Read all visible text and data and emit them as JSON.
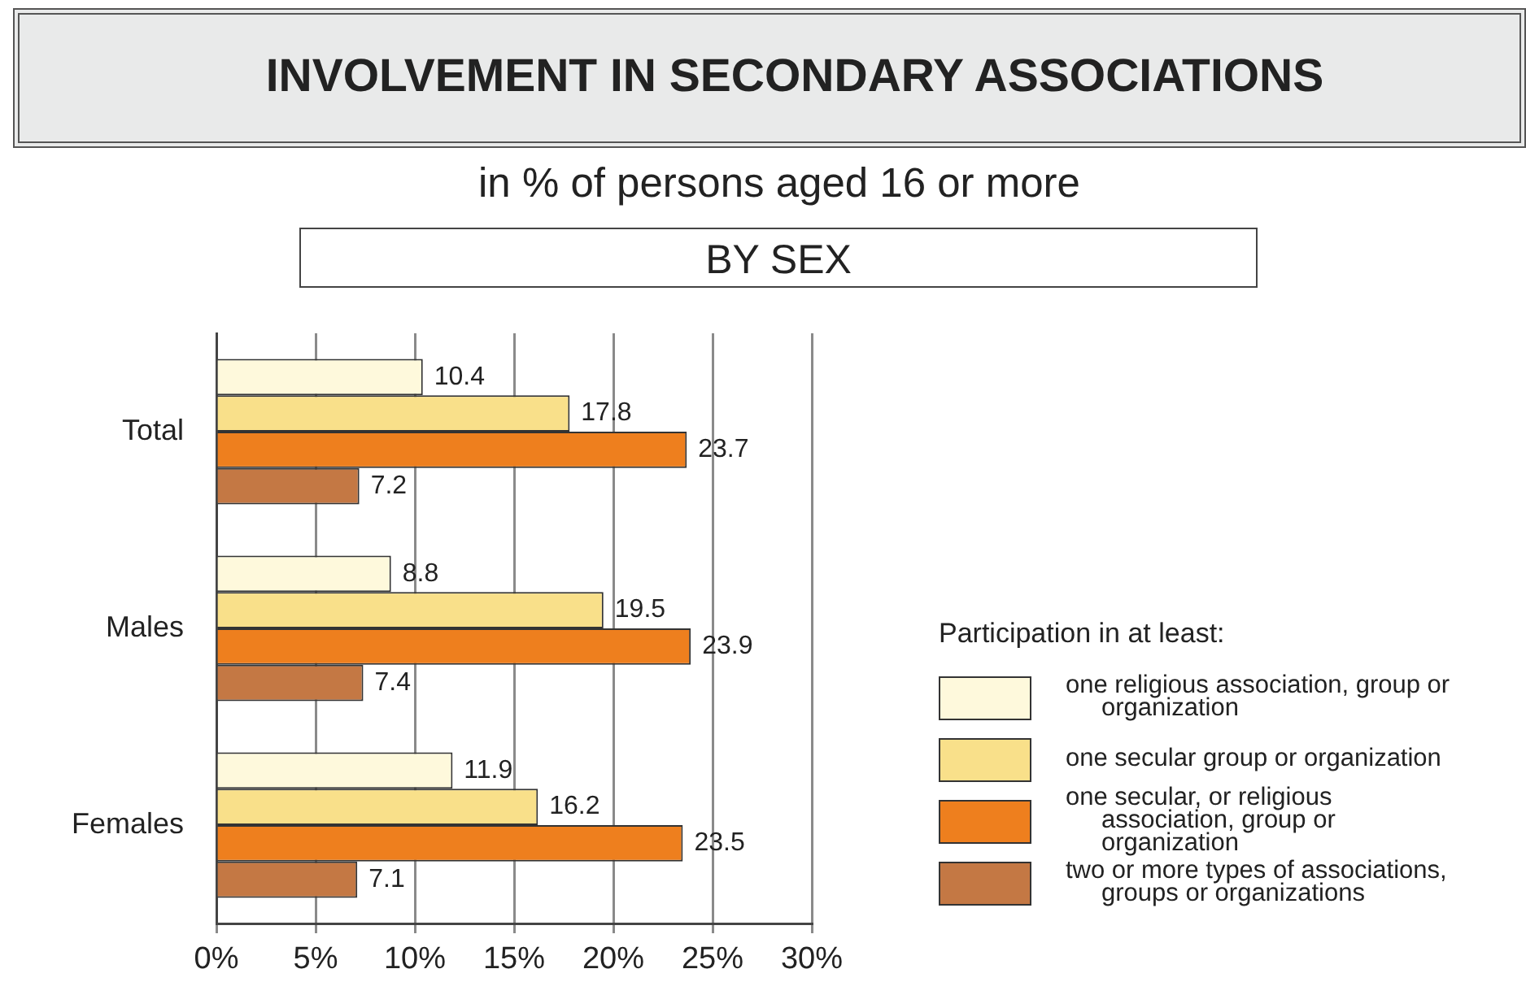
{
  "chart_data": {
    "type": "bar",
    "orientation": "horizontal",
    "title": "INVOLVEMENT IN SECONDARY ASSOCIATIONS",
    "subtitle": "in % of persons aged 16 or more",
    "annotations": [
      "BY SEX"
    ],
    "legend_title": "Participation in at least:",
    "legend": "right",
    "grid": "x",
    "data_labels": true,
    "categories": [
      "Total",
      "Males",
      "Females"
    ],
    "series": [
      {
        "name": "one religious association, group or organization",
        "color": "#fef9dc",
        "values": [
          10.4,
          8.8,
          11.9
        ]
      },
      {
        "name": "one secular group or organization",
        "color": "#f9e08a",
        "values": [
          17.8,
          19.5,
          16.2
        ]
      },
      {
        "name": "one secular, or religious association, group or organization",
        "color": "#ee7f1e",
        "values": [
          23.7,
          23.9,
          23.5
        ]
      },
      {
        "name": "two or more types of associations, groups or organizations",
        "color": "#c47844",
        "values": [
          7.2,
          7.4,
          7.1
        ]
      }
    ],
    "xlim": [
      0,
      30
    ],
    "xticks": [
      {
        "value": 0,
        "label": "0%"
      },
      {
        "value": 5,
        "label": "5%"
      },
      {
        "value": 10,
        "label": "10%"
      },
      {
        "value": 15,
        "label": "15%"
      },
      {
        "value": 20,
        "label": "20%"
      },
      {
        "value": 25,
        "label": "25%"
      },
      {
        "value": 30,
        "label": "30%"
      }
    ]
  }
}
